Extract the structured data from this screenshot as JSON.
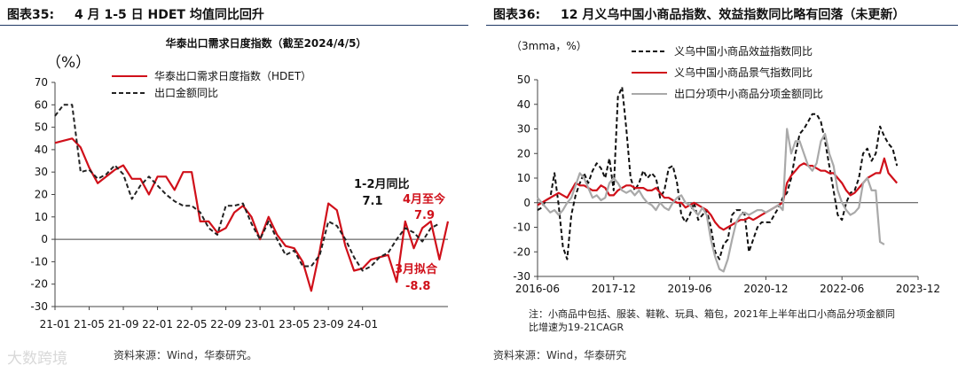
{
  "left": {
    "fig_label": "图表35:",
    "fig_title": "4 月 1-5 日 HDET 均值同比回升",
    "source": "资料来源：Wind，华泰研究。",
    "watermark": "大数跨境"
  },
  "right": {
    "fig_label": "图表36:",
    "fig_title": "12 月义乌中国小商品指数、效益指数同比略有回落（未更新）",
    "source": "资料来源：Wind，华泰研究",
    "note_line1": "注：小商品中包括、服装、鞋靴、玩具、箱包，2021年上半年出口小商品分项金额同",
    "note_line2": "比增速为19-21CAGR"
  },
  "chart_data": [
    {
      "type": "line",
      "title": "华泰出口需求日度指数（截至2024/4/5）",
      "ylabel": "（%）",
      "ylim": [
        -30,
        70
      ],
      "yticks": [
        70,
        60,
        50,
        40,
        30,
        20,
        10,
        0,
        -10,
        -20,
        -30
      ],
      "x_labels": [
        "21-01",
        "21-05",
        "21-09",
        "22-01",
        "22-05",
        "22-09",
        "23-01",
        "23-05",
        "23-09",
        "24-01"
      ],
      "x_start": "2021-01",
      "legend_position": "top-left",
      "series": [
        {
          "name": "华泰出口需求日度指数（HDET）",
          "color": "#d0101a",
          "style": "solid",
          "values": [
            43,
            44,
            45,
            41,
            32,
            25,
            28,
            31,
            33,
            27,
            27,
            20,
            28,
            28,
            22,
            30,
            30,
            8,
            8,
            3,
            5,
            12,
            15,
            10,
            0,
            10,
            2,
            -3,
            -4,
            -10,
            -23,
            -5,
            16,
            13,
            -3,
            -14,
            -13,
            -9,
            -8,
            -7,
            -19,
            8,
            -4,
            5,
            8,
            -9,
            8
          ]
        },
        {
          "name": "出口金额同比",
          "color": "#222222",
          "style": "dashed",
          "values": [
            55,
            60,
            60,
            30,
            31,
            27,
            29,
            33,
            29,
            18,
            24,
            28,
            24,
            20,
            17,
            15,
            15,
            12,
            5,
            2,
            15,
            15,
            16,
            7,
            0,
            8,
            0,
            -7,
            -5,
            -12,
            -12,
            -7,
            8,
            6,
            0,
            -8,
            -14,
            -12,
            -8,
            -6,
            0,
            5,
            3,
            -1,
            5,
            7,
            null
          ]
        }
      ],
      "annotations": [
        {
          "text": "1-2月同比",
          "color": "#111111"
        },
        {
          "text": "7.1",
          "color": "#111111"
        },
        {
          "text": "4月至今",
          "color": "#d0101a"
        },
        {
          "text": "7.9",
          "color": "#d0101a"
        },
        {
          "text": "3月拟合",
          "color": "#d0101a"
        },
        {
          "text": "-8.8",
          "color": "#d0101a"
        }
      ]
    },
    {
      "type": "line",
      "ylabel": "（3mma，%）",
      "ylim": [
        -30,
        50
      ],
      "yticks": [
        50,
        40,
        30,
        20,
        10,
        0,
        -10,
        -20,
        -30
      ],
      "x_labels": [
        "2016-06",
        "2017-12",
        "2019-06",
        "2020-12",
        "2022-06",
        "2023-12"
      ],
      "x_start": "2016-06",
      "legend_position": "top-right",
      "series": [
        {
          "name": "义乌中国小商品效益指数同比",
          "color": "#111111",
          "style": "dashed",
          "values": [
            -3,
            -2,
            1,
            2,
            12,
            -1,
            -18,
            -23,
            -5,
            3,
            8,
            12,
            8,
            13,
            16,
            14,
            10,
            18,
            5,
            43,
            47,
            30,
            10,
            5,
            8,
            13,
            10,
            12,
            10,
            2,
            5,
            14,
            15,
            8,
            -5,
            -8,
            -5,
            0,
            -7,
            -5,
            -3,
            -10,
            -20,
            -23,
            -17,
            -15,
            -5,
            -3,
            -3,
            -5,
            -20,
            -15,
            -10,
            -8,
            -8,
            -8,
            -5,
            -2,
            2,
            4,
            10,
            20,
            28,
            30,
            33,
            36,
            36,
            33,
            25,
            15,
            5,
            -5,
            -7,
            0,
            4,
            5,
            10,
            20,
            22,
            17,
            20,
            31,
            27,
            24,
            22,
            15
          ]
        },
        {
          "name": "义乌中国小商品景气指数同比",
          "color": "#d0101a",
          "style": "solid",
          "values": [
            -1,
            0,
            1,
            2,
            3,
            4,
            3,
            2,
            5,
            8,
            7,
            7,
            6,
            5,
            5,
            7,
            6,
            3,
            3,
            5,
            6,
            7,
            7,
            6,
            6,
            6,
            5,
            5,
            6,
            4,
            2,
            2,
            1,
            0,
            0,
            -2,
            -1,
            0,
            -1,
            -2,
            -3,
            -5,
            -8,
            -10,
            -11,
            -10,
            -9,
            -8,
            -7,
            -7,
            -6,
            -7,
            -6,
            -5,
            -4,
            -3,
            -2,
            -1,
            0,
            8,
            11,
            13,
            15,
            16,
            15,
            15,
            14,
            13,
            13,
            12,
            12,
            10,
            8,
            5,
            3,
            4,
            6,
            8,
            10,
            11,
            12,
            12,
            18,
            12,
            10,
            8
          ]
        },
        {
          "name": "出口分项中小商品分项金额同比",
          "color": "#a9a9a9",
          "style": "solid",
          "values": [
            2,
            0,
            -2,
            -4,
            -3,
            -5,
            -3,
            0,
            2,
            7,
            12,
            10,
            6,
            2,
            3,
            1,
            2,
            8,
            10,
            8,
            5,
            4,
            5,
            3,
            5,
            2,
            0,
            -1,
            -3,
            0,
            -2,
            -3,
            0,
            2,
            3,
            0,
            -1,
            -3,
            -5,
            -2,
            -5,
            -15,
            -22,
            -27,
            -28,
            -23,
            -15,
            -8,
            -5,
            -4,
            -5,
            -4,
            -3,
            -3,
            -4,
            -3,
            -2,
            -1,
            -3,
            30,
            20,
            25,
            25,
            20,
            15,
            13,
            16,
            25,
            28,
            20,
            15,
            5,
            0,
            -3,
            -5,
            -4,
            -2,
            8,
            10,
            5,
            5,
            -16,
            -17,
            null,
            null,
            null
          ]
        }
      ]
    }
  ]
}
